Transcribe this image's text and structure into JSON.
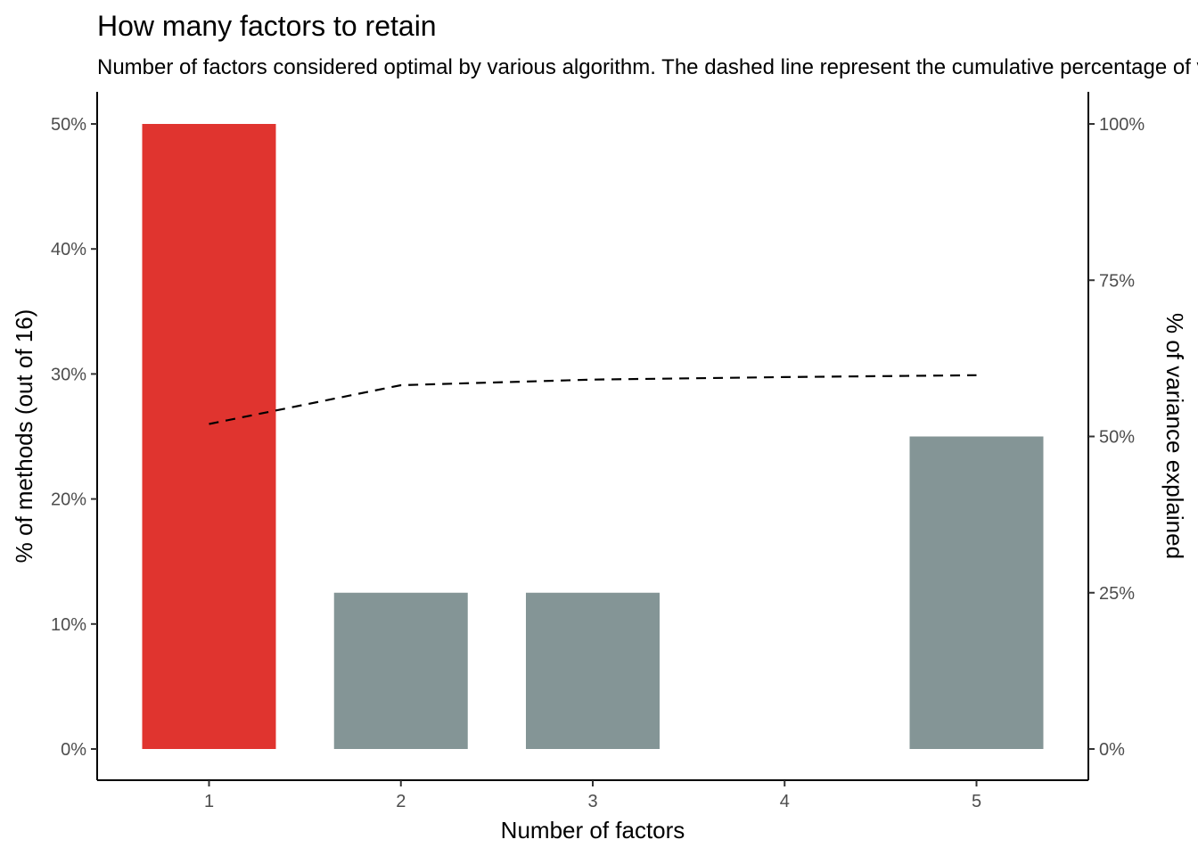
{
  "title": "How many factors to retain",
  "subtitle": "Number of factors considered optimal by various algorithm. The dashed line represent the cumulative percentage of variance explained",
  "colors": {
    "highlight": "#e0342f",
    "default": "#849596",
    "line": "#000000"
  },
  "chart_data": {
    "type": "bar",
    "categories": [
      "1",
      "2",
      "3",
      "4",
      "5"
    ],
    "values": [
      50,
      12.5,
      12.5,
      0,
      25
    ],
    "highlight": [
      true,
      false,
      false,
      false,
      false
    ],
    "xlabel": "Number of factors",
    "ylabel": "% of methods (out of 16)",
    "ylim": [
      0,
      52.5
    ],
    "yticks": [
      "0%",
      "10%",
      "20%",
      "30%",
      "40%",
      "50%"
    ],
    "ytick_values": [
      0,
      10,
      20,
      30,
      40,
      50
    ],
    "y2label": "% of variance explained",
    "y2ticks": [
      "0%",
      "25%",
      "50%",
      "75%",
      "100%"
    ],
    "y2tick_values": [
      0,
      25,
      50,
      75,
      100
    ],
    "line": {
      "style": "dashed",
      "axis": "secondary",
      "x": [
        "1",
        "2",
        "3",
        "4",
        "5"
      ],
      "values": [
        52,
        58.2,
        59.1,
        59.5,
        59.8
      ]
    },
    "grid": false
  }
}
